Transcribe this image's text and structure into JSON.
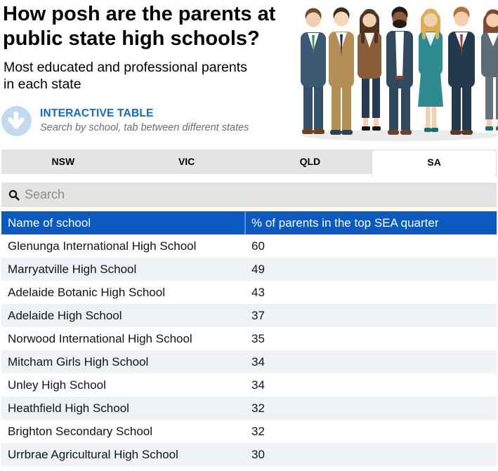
{
  "ui_colors": {
    "table_header_blue": "#0b5ac1",
    "link_blue": "#1568c4",
    "icon_circle_blue": "#c3d9ee",
    "tab_bar_gray": "#e5e4e3",
    "search_bar_gray": "#e4e3e2",
    "alt_row_gray": "#eef1f5"
  },
  "header": {
    "title_line1": "How posh are the parents at",
    "title_line2": "public state high schools?",
    "subtitle_line1": "Most educated and professional parents",
    "subtitle_line2": "in each state",
    "cta_label": "INTERACTIVE TABLE",
    "cta_hint": "Search by school, tab between different states"
  },
  "tabs": [
    {
      "label": "NSW",
      "active": false
    },
    {
      "label": "VIC",
      "active": false
    },
    {
      "label": "QLD",
      "active": false
    },
    {
      "label": "SA",
      "active": true
    }
  ],
  "search": {
    "placeholder": "Search",
    "value": ""
  },
  "table": {
    "columns": [
      "Name of school",
      "% of parents in the top SEA quarter"
    ],
    "rows": [
      {
        "school": "Glenunga International High School",
        "value": "60"
      },
      {
        "school": "Marryatville High School",
        "value": "49"
      },
      {
        "school": "Adelaide Botanic High School",
        "value": "43"
      },
      {
        "school": "Adelaide High School",
        "value": "37"
      },
      {
        "school": "Norwood International High School",
        "value": "35"
      },
      {
        "school": "Mitcham Girls High School",
        "value": "34"
      },
      {
        "school": "Unley High School",
        "value": "34"
      },
      {
        "school": "Heathfield High School",
        "value": "32"
      },
      {
        "school": "Brighton Secondary School",
        "value": "32"
      },
      {
        "school": "Urrbrae Agricultural High School",
        "value": "30"
      }
    ]
  }
}
